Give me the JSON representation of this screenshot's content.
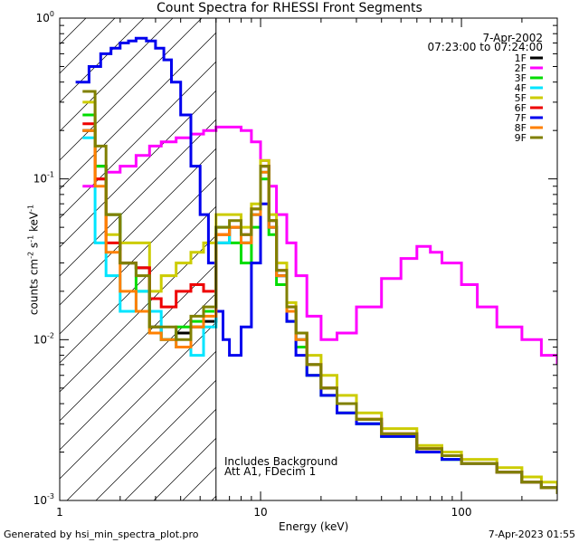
{
  "header": {
    "title": "Count Spectra for RHESSI Front Segments",
    "date": "7-Apr-2002",
    "time_range": "07:23:00 to 07:24:00"
  },
  "annotations": {
    "line1": "Includes Background",
    "line2": "Att A1, FDecim 1"
  },
  "footer": {
    "generated": "Generated by hsi_min_spectra_plot.pro",
    "timestamp": "7-Apr-2023 01:55"
  },
  "chart_data": {
    "type": "line",
    "title": "Count Spectra for RHESSI Front Segments",
    "xlabel": "Energy (keV)",
    "ylabel": "counts cm-2 s-1 keV-1",
    "xscale": "log",
    "yscale": "log",
    "xlim": [
      1,
      300
    ],
    "ylim": [
      0.001,
      1
    ],
    "x_tick_labels": [
      "1",
      "10",
      "100"
    ],
    "y_tick_labels": [
      "10^0",
      "10^-1",
      "10^-2",
      "10^-3"
    ],
    "line_style": "step",
    "legend_position": "top-right",
    "shaded_region": {
      "x_range": [
        1,
        6
      ],
      "style": "diagonal hatch"
    },
    "vertical_line_x": 6,
    "series": [
      {
        "name": "1F",
        "color": "#000000",
        "x": [
          1.3,
          1.5,
          1.7,
          2,
          2.4,
          2.8,
          3.2,
          3.8,
          4.5,
          5.2,
          6,
          7,
          8,
          9,
          10,
          11,
          12,
          13.5,
          15,
          17,
          20,
          24,
          30,
          40,
          60,
          80,
          100,
          150,
          200,
          250,
          300
        ],
        "y": [
          0.2,
          0.12,
          0.06,
          0.03,
          0.028,
          0.012,
          0.01,
          0.011,
          0.012,
          0.013,
          0.04,
          0.05,
          0.04,
          0.06,
          0.12,
          0.05,
          0.025,
          0.015,
          0.01,
          0.007,
          0.005,
          0.004,
          0.003,
          0.0025,
          0.002,
          0.0018,
          0.0017,
          0.0015,
          0.0013,
          0.0012,
          0.0011
        ]
      },
      {
        "name": "2F",
        "color": "#ff00ff",
        "x": [
          1.3,
          1.5,
          1.7,
          2,
          2.4,
          2.8,
          3.2,
          3.8,
          4.5,
          5.2,
          6,
          7,
          8,
          9,
          10,
          11,
          12,
          13.5,
          15,
          17,
          20,
          24,
          30,
          40,
          50,
          60,
          70,
          80,
          100,
          120,
          150,
          200,
          250,
          300
        ],
        "y": [
          0.09,
          0.1,
          0.11,
          0.12,
          0.14,
          0.16,
          0.17,
          0.18,
          0.19,
          0.2,
          0.21,
          0.21,
          0.2,
          0.17,
          0.13,
          0.09,
          0.06,
          0.04,
          0.025,
          0.014,
          0.01,
          0.011,
          0.016,
          0.024,
          0.032,
          0.038,
          0.035,
          0.03,
          0.022,
          0.016,
          0.012,
          0.01,
          0.008,
          0.007
        ]
      },
      {
        "name": "3F",
        "color": "#00dd00",
        "x": [
          1.3,
          1.5,
          1.7,
          2,
          2.4,
          2.8,
          3.2,
          3.8,
          4.5,
          5.2,
          6,
          7,
          8,
          9,
          10,
          11,
          12,
          13.5,
          15,
          17,
          20,
          24,
          30,
          40,
          60,
          80,
          100,
          150,
          200,
          250,
          300
        ],
        "y": [
          0.25,
          0.12,
          0.06,
          0.03,
          0.02,
          0.011,
          0.01,
          0.012,
          0.013,
          0.015,
          0.05,
          0.04,
          0.03,
          0.05,
          0.1,
          0.045,
          0.022,
          0.013,
          0.009,
          0.006,
          0.0045,
          0.0035,
          0.003,
          0.0025,
          0.002,
          0.0018,
          0.0017,
          0.0015,
          0.0013,
          0.0012,
          0.0011
        ]
      },
      {
        "name": "4F",
        "color": "#00e5ff",
        "x": [
          1.3,
          1.5,
          1.7,
          2,
          2.4,
          2.8,
          3.2,
          3.8,
          4.5,
          5.2,
          6,
          7,
          8,
          9,
          10,
          11,
          12,
          13.5,
          15,
          17,
          20,
          24,
          30,
          40,
          60,
          80,
          100,
          150,
          200,
          250,
          300
        ],
        "y": [
          0.18,
          0.04,
          0.025,
          0.015,
          0.02,
          0.015,
          0.01,
          0.009,
          0.008,
          0.012,
          0.04,
          0.05,
          0.04,
          0.06,
          0.11,
          0.05,
          0.025,
          0.015,
          0.01,
          0.007,
          0.005,
          0.004,
          0.003,
          0.0025,
          0.002,
          0.0018,
          0.0017,
          0.0015,
          0.0013,
          0.0012,
          0.0011
        ]
      },
      {
        "name": "5F",
        "color": "#cccc00",
        "x": [
          1.3,
          1.5,
          1.7,
          2,
          2.4,
          2.8,
          3.2,
          3.8,
          4.5,
          5.2,
          6,
          7,
          8,
          9,
          10,
          11,
          12,
          13.5,
          15,
          17,
          20,
          24,
          30,
          40,
          60,
          80,
          100,
          150,
          200,
          250,
          300
        ],
        "y": [
          0.3,
          0.1,
          0.045,
          0.04,
          0.04,
          0.02,
          0.025,
          0.03,
          0.035,
          0.04,
          0.06,
          0.06,
          0.05,
          0.07,
          0.13,
          0.06,
          0.03,
          0.017,
          0.011,
          0.008,
          0.006,
          0.0045,
          0.0035,
          0.0028,
          0.0022,
          0.002,
          0.0018,
          0.0016,
          0.0014,
          0.0013,
          0.0012
        ]
      },
      {
        "name": "6F",
        "color": "#ee0000",
        "x": [
          1.3,
          1.5,
          1.7,
          2,
          2.4,
          2.8,
          3.2,
          3.8,
          4.5,
          5.2,
          6,
          7,
          8,
          9,
          10,
          11,
          12,
          13.5,
          15,
          17,
          20,
          24,
          30,
          40,
          60,
          80,
          100,
          150,
          200,
          250,
          300
        ],
        "y": [
          0.22,
          0.1,
          0.04,
          0.03,
          0.028,
          0.018,
          0.016,
          0.02,
          0.022,
          0.02,
          0.045,
          0.05,
          0.045,
          0.065,
          0.12,
          0.055,
          0.027,
          0.016,
          0.011,
          0.007,
          0.005,
          0.004,
          0.0032,
          0.0026,
          0.0021,
          0.0019,
          0.0017,
          0.0015,
          0.0013,
          0.0012,
          0.0011
        ]
      },
      {
        "name": "7F",
        "color": "#0000ee",
        "x": [
          1.2,
          1.4,
          1.6,
          1.8,
          2,
          2.2,
          2.4,
          2.7,
          3,
          3.3,
          3.6,
          4,
          4.5,
          5,
          5.5,
          6,
          6.5,
          7,
          8,
          9,
          10,
          11,
          12,
          13.5,
          15,
          17,
          20,
          24,
          30,
          40,
          60,
          80,
          100,
          150,
          200,
          250,
          300
        ],
        "y": [
          0.4,
          0.5,
          0.6,
          0.65,
          0.7,
          0.72,
          0.75,
          0.72,
          0.65,
          0.55,
          0.4,
          0.25,
          0.12,
          0.06,
          0.03,
          0.015,
          0.01,
          0.008,
          0.012,
          0.03,
          0.07,
          0.05,
          0.025,
          0.013,
          0.008,
          0.006,
          0.0045,
          0.0035,
          0.003,
          0.0025,
          0.002,
          0.0018,
          0.0017,
          0.0015,
          0.0013,
          0.0012,
          0.0011
        ]
      },
      {
        "name": "8F",
        "color": "#ff8000",
        "x": [
          1.3,
          1.5,
          1.7,
          2,
          2.4,
          2.8,
          3.2,
          3.8,
          4.5,
          5.2,
          6,
          7,
          8,
          9,
          10,
          11,
          12,
          13.5,
          15,
          17,
          20,
          24,
          30,
          40,
          60,
          80,
          100,
          150,
          200,
          250,
          300
        ],
        "y": [
          0.2,
          0.09,
          0.035,
          0.02,
          0.015,
          0.011,
          0.01,
          0.009,
          0.012,
          0.014,
          0.045,
          0.05,
          0.04,
          0.06,
          0.11,
          0.05,
          0.025,
          0.015,
          0.01,
          0.007,
          0.005,
          0.004,
          0.0032,
          0.0026,
          0.0021,
          0.0019,
          0.0017,
          0.0015,
          0.0013,
          0.0012,
          0.0011
        ]
      },
      {
        "name": "9F",
        "color": "#808000",
        "x": [
          1.3,
          1.5,
          1.7,
          2,
          2.4,
          2.8,
          3.2,
          3.8,
          4.5,
          5.2,
          6,
          7,
          8,
          9,
          10,
          11,
          12,
          13.5,
          15,
          17,
          20,
          24,
          30,
          40,
          60,
          80,
          100,
          150,
          200,
          250,
          300
        ],
        "y": [
          0.35,
          0.16,
          0.06,
          0.03,
          0.025,
          0.012,
          0.012,
          0.01,
          0.014,
          0.016,
          0.05,
          0.055,
          0.045,
          0.065,
          0.12,
          0.055,
          0.027,
          0.016,
          0.011,
          0.007,
          0.005,
          0.004,
          0.0032,
          0.0026,
          0.0021,
          0.0019,
          0.0017,
          0.0015,
          0.0013,
          0.0012,
          0.0011
        ]
      }
    ]
  }
}
